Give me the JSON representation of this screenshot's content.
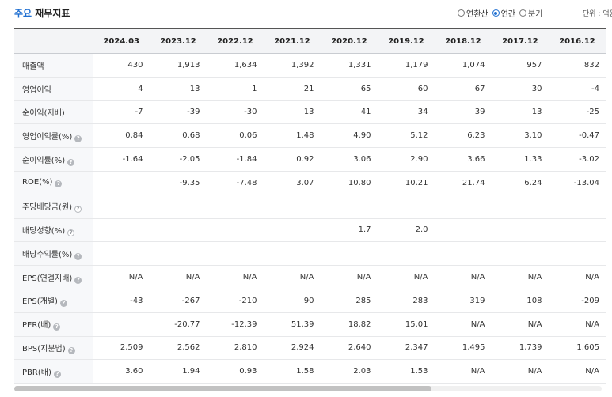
{
  "header": {
    "title_accent": "주요",
    "title_rest": " 재무지표",
    "period_options": [
      {
        "label": "연환산",
        "checked": false
      },
      {
        "label": "연간",
        "checked": true
      },
      {
        "label": "분기",
        "checked": false
      }
    ],
    "unit": "단위 : 억원"
  },
  "table": {
    "columns": [
      "2024.03",
      "2023.12",
      "2022.12",
      "2021.12",
      "2020.12",
      "2019.12",
      "2018.12",
      "2017.12",
      "2016.12"
    ],
    "rows": [
      {
        "label": "매출액",
        "icon": "",
        "values": [
          "430",
          "1,913",
          "1,634",
          "1,392",
          "1,331",
          "1,179",
          "1,074",
          "957",
          "832"
        ]
      },
      {
        "label": "영업이익",
        "icon": "",
        "values": [
          "4",
          "13",
          "1",
          "21",
          "65",
          "60",
          "67",
          "30",
          "-4"
        ]
      },
      {
        "label": "순이익(지배)",
        "icon": "",
        "values": [
          "-7",
          "-39",
          "-30",
          "13",
          "41",
          "34",
          "39",
          "13",
          "-25"
        ]
      },
      {
        "label": "영업이익률(%)",
        "icon": "help-icon",
        "values": [
          "0.84",
          "0.68",
          "0.06",
          "1.48",
          "4.90",
          "5.12",
          "6.23",
          "3.10",
          "-0.47"
        ]
      },
      {
        "label": "순이익률(%)",
        "icon": "help-icon",
        "values": [
          "-1.64",
          "-2.05",
          "-1.84",
          "0.92",
          "3.06",
          "2.90",
          "3.66",
          "1.33",
          "-3.02"
        ]
      },
      {
        "label": "ROE(%)",
        "icon": "help-icon",
        "values": [
          "",
          "-9.35",
          "-7.48",
          "3.07",
          "10.80",
          "10.21",
          "21.74",
          "6.24",
          "-13.04"
        ]
      },
      {
        "label": "주당배당금(원)",
        "icon": "help-outline-icon",
        "values": [
          "",
          "",
          "",
          "",
          "",
          "",
          "",
          "",
          ""
        ]
      },
      {
        "label": "배당성향(%)",
        "icon": "help-outline-icon",
        "values": [
          "",
          "",
          "",
          "",
          "1.7",
          "2.0",
          "",
          "",
          ""
        ]
      },
      {
        "label": "배당수익률(%)",
        "icon": "help-icon",
        "values": [
          "",
          "",
          "",
          "",
          "",
          "",
          "",
          "",
          ""
        ]
      },
      {
        "label": "EPS(연결지배)",
        "icon": "help-icon",
        "values": [
          "N/A",
          "N/A",
          "N/A",
          "N/A",
          "N/A",
          "N/A",
          "N/A",
          "N/A",
          "N/A"
        ]
      },
      {
        "label": "EPS(개별)",
        "icon": "help-icon",
        "values": [
          "-43",
          "-267",
          "-210",
          "90",
          "285",
          "283",
          "319",
          "108",
          "-209"
        ]
      },
      {
        "label": "PER(배)",
        "icon": "help-icon",
        "values": [
          "",
          "-20.77",
          "-12.39",
          "51.39",
          "18.82",
          "15.01",
          "N/A",
          "N/A",
          "N/A"
        ]
      },
      {
        "label": "BPS(지분법)",
        "icon": "help-icon",
        "values": [
          "2,509",
          "2,562",
          "2,810",
          "2,924",
          "2,640",
          "2,347",
          "1,495",
          "1,739",
          "1,605"
        ]
      },
      {
        "label": "PBR(배)",
        "icon": "help-icon",
        "values": [
          "3.60",
          "1.94",
          "0.93",
          "1.58",
          "2.03",
          "1.53",
          "N/A",
          "N/A",
          "N/A"
        ]
      }
    ]
  },
  "scrollbar": {
    "position_fraction": 0.0,
    "visible_fraction": 0.71
  }
}
